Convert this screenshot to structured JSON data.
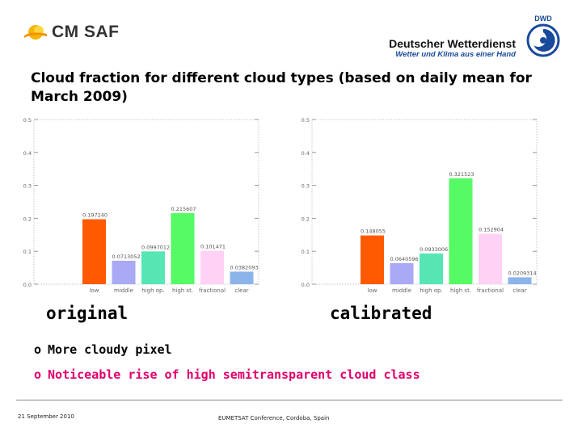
{
  "header": {
    "logo_text": "CM SAF",
    "org_name": "Deutscher Wetterdienst",
    "org_tagline": "Wetter und Klima aus einer Hand",
    "emblem_text": "DWD"
  },
  "title": "Cloud fraction for different cloud types (based on daily mean for March 2009)",
  "chart_data": [
    {
      "type": "bar",
      "categories": [
        "low",
        "middle",
        "high op.",
        "high st.",
        "fractional",
        "clear"
      ],
      "values": [
        0.19724,
        0.0713052,
        0.0997012,
        0.215607,
        0.101471,
        0.0382093
      ],
      "value_labels": [
        "0.197240",
        "0.0713052",
        "0.0997012",
        "0.215607",
        "0.101471",
        "0.0382093"
      ],
      "colors": [
        "#ff5a00",
        "#a9a9f5",
        "#55e6b4",
        "#55fa64",
        "#ffd2f5",
        "#8ab4ea"
      ],
      "ylim": [
        0,
        0.5
      ],
      "yticks": [
        0.0,
        0.1,
        0.2,
        0.3,
        0.4,
        0.5
      ],
      "ytick_labels": [
        "0.0",
        "0.1",
        "0.2",
        "0.3",
        "0.4",
        "0.5"
      ],
      "grid": false,
      "caption": "original"
    },
    {
      "type": "bar",
      "categories": [
        "low",
        "middle",
        "high op.",
        "high st.",
        "fractional",
        "clear"
      ],
      "values": [
        0.148055,
        0.0640596,
        0.0933006,
        0.321523,
        0.152904,
        0.0209314
      ],
      "value_labels": [
        "0.148055",
        "0.0640596",
        "0.0933006",
        "0.321523",
        "0.152904",
        "0.0209314"
      ],
      "colors": [
        "#ff5a00",
        "#a9a9f5",
        "#55e6b4",
        "#55fa64",
        "#ffd2f5",
        "#8ab4ea"
      ],
      "ylim": [
        0,
        0.5
      ],
      "yticks": [
        0.0,
        0.1,
        0.2,
        0.3,
        0.4,
        0.5
      ],
      "ytick_labels": [
        "0.0",
        "0.1",
        "0.2",
        "0.3",
        "0.4",
        "0.5"
      ],
      "grid": false,
      "caption": "calibrated"
    }
  ],
  "bullets": [
    {
      "mark": "o",
      "text": "More cloudy pixel",
      "color": "#000000"
    },
    {
      "mark": "o",
      "text": "Noticeable rise of high semitransparent cloud class",
      "color": "#e0006b"
    }
  ],
  "footer": {
    "date": "21 September 2010",
    "conference": "EUMETSAT Conference, Cordoba, Spain"
  }
}
